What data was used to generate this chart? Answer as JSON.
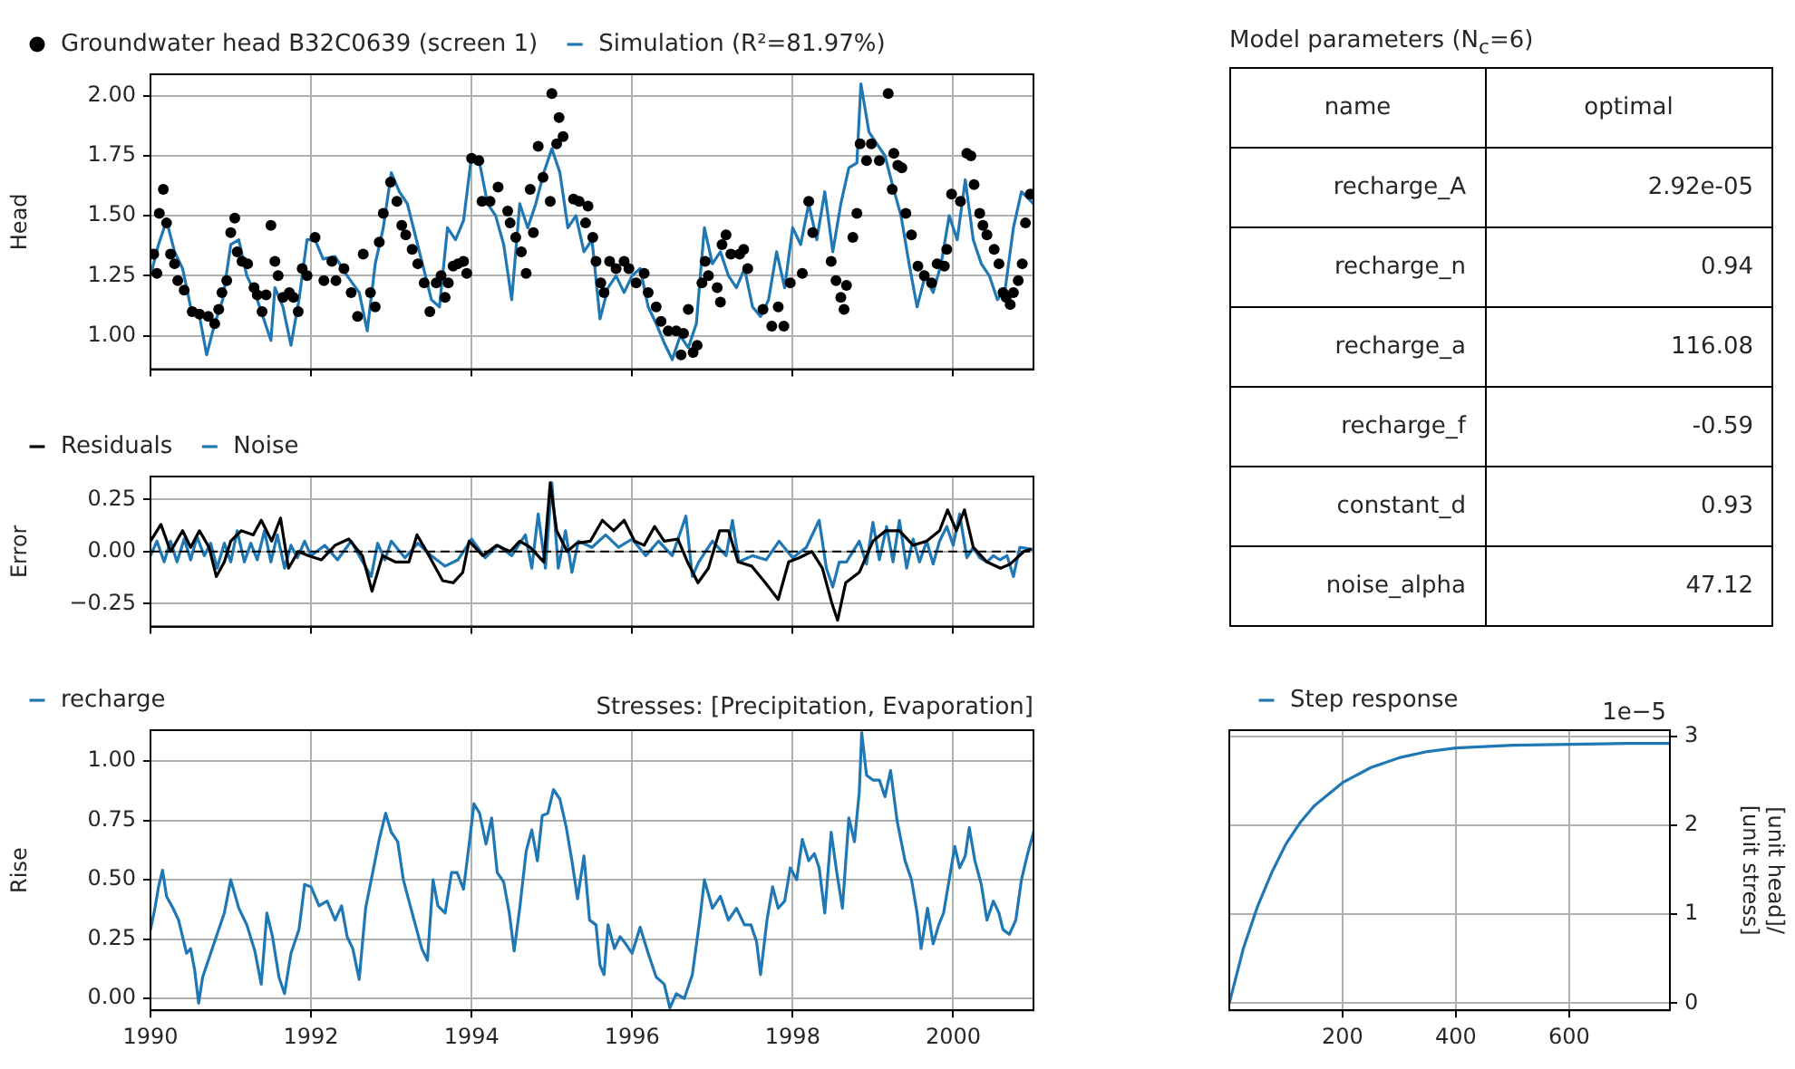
{
  "chart_data": [
    {
      "type": "line",
      "ylabel": "Head",
      "xlim": [
        1990,
        2001
      ],
      "xticks": [
        1990,
        1992,
        1994,
        1996,
        1998,
        2000
      ],
      "ylim": [
        0.86,
        2.09
      ],
      "yticks": [
        {
          "value": 1.0,
          "label": "1.00"
        },
        {
          "value": 1.25,
          "label": "1.25"
        },
        {
          "value": 1.5,
          "label": "1.50"
        },
        {
          "value": 1.75,
          "label": "1.75"
        },
        {
          "value": 2.0,
          "label": "2.00"
        }
      ],
      "grid": true,
      "legend": "top left",
      "tick_labels": "y",
      "series": [
        {
          "name": "Groundwater head B32C0639 (screen 1)",
          "type": "scatter",
          "marker": "circle",
          "color": "#000000",
          "x": [
            1990.04,
            1990.08,
            1990.11,
            1990.16,
            1990.2,
            1990.25,
            1990.3,
            1990.34,
            1990.42,
            1990.52,
            1990.61,
            1990.72,
            1990.8,
            1990.85,
            1990.89,
            1990.95,
            1991.0,
            1991.05,
            1991.08,
            1991.14,
            1991.21,
            1991.29,
            1991.33,
            1991.39,
            1991.44,
            1991.5,
            1991.55,
            1991.59,
            1991.65,
            1991.73,
            1991.78,
            1991.84,
            1991.89,
            1991.95,
            1992.05,
            1992.16,
            1992.26,
            1992.31,
            1992.41,
            1992.5,
            1992.58,
            1992.65,
            1992.74,
            1992.8,
            1992.85,
            1992.9,
            1992.99,
            1993.07,
            1993.13,
            1993.18,
            1993.26,
            1993.33,
            1993.41,
            1993.48,
            1993.56,
            1993.62,
            1993.67,
            1993.71,
            1993.77,
            1993.83,
            1993.9,
            1993.94,
            1994.0,
            1994.09,
            1994.13,
            1994.23,
            1994.33,
            1994.45,
            1994.48,
            1994.55,
            1994.62,
            1994.68,
            1994.73,
            1994.77,
            1994.83,
            1994.89,
            1994.98,
            1995.0,
            1995.06,
            1995.09,
            1995.14,
            1995.27,
            1995.34,
            1995.42,
            1995.45,
            1995.51,
            1995.55,
            1995.61,
            1995.65,
            1995.72,
            1995.8,
            1995.9,
            1995.96,
            1996.05,
            1996.15,
            1996.2,
            1996.3,
            1996.36,
            1996.45,
            1996.55,
            1996.61,
            1996.64,
            1996.7,
            1996.76,
            1996.81,
            1996.87,
            1996.91,
            1996.95,
            1997.06,
            1997.1,
            1997.12,
            1997.17,
            1997.23,
            1997.34,
            1997.39,
            1997.44,
            1997.63,
            1997.74,
            1997.82,
            1997.89,
            1997.97,
            1998.12,
            1998.2,
            1998.25,
            1998.48,
            1998.54,
            1998.6,
            1998.64,
            1998.67,
            1998.75,
            1998.8,
            1998.84,
            1998.92,
            1998.98,
            1999.08,
            1999.19,
            1999.24,
            1999.26,
            1999.31,
            1999.36,
            1999.41,
            1999.48,
            1999.56,
            1999.64,
            1999.73,
            1999.8,
            1999.89,
            1999.92,
            1999.98,
            2000.09,
            2000.17,
            2000.22,
            2000.26,
            2000.33,
            2000.37,
            2000.42,
            2000.51,
            2000.57,
            2000.62,
            2000.66,
            2000.71,
            2000.75,
            2000.81,
            2000.86,
            2000.9,
            2000.96
          ],
          "values": [
            1.34,
            1.26,
            1.51,
            1.61,
            1.47,
            1.34,
            1.3,
            1.23,
            1.19,
            1.1,
            1.09,
            1.08,
            1.05,
            1.11,
            1.18,
            1.23,
            1.43,
            1.49,
            1.35,
            1.31,
            1.3,
            1.2,
            1.17,
            1.1,
            1.17,
            1.46,
            1.31,
            1.25,
            1.16,
            1.18,
            1.16,
            1.1,
            1.28,
            1.25,
            1.41,
            1.23,
            1.31,
            1.23,
            1.28,
            1.18,
            1.08,
            1.34,
            1.18,
            1.12,
            1.39,
            1.51,
            1.64,
            1.56,
            1.46,
            1.42,
            1.36,
            1.3,
            1.22,
            1.1,
            1.22,
            1.25,
            1.16,
            1.22,
            1.29,
            1.3,
            1.31,
            1.26,
            1.74,
            1.73,
            1.56,
            1.56,
            1.62,
            1.52,
            1.47,
            1.41,
            1.35,
            1.26,
            1.61,
            1.43,
            1.79,
            1.66,
            1.56,
            2.01,
            1.8,
            1.91,
            1.83,
            1.57,
            1.56,
            1.47,
            1.54,
            1.41,
            1.31,
            1.22,
            1.18,
            1.31,
            1.28,
            1.31,
            1.28,
            1.22,
            1.26,
            1.18,
            1.12,
            1.06,
            1.02,
            1.02,
            0.92,
            1.01,
            1.11,
            0.93,
            0.96,
            1.22,
            1.31,
            1.25,
            1.2,
            1.14,
            1.38,
            1.42,
            1.34,
            1.34,
            1.36,
            1.28,
            1.11,
            1.04,
            1.12,
            1.04,
            1.22,
            1.26,
            1.56,
            1.43,
            1.31,
            1.23,
            1.16,
            1.11,
            1.21,
            1.41,
            1.51,
            1.8,
            1.73,
            1.8,
            1.73,
            2.01,
            1.61,
            1.76,
            1.71,
            1.7,
            1.51,
            1.42,
            1.29,
            1.25,
            1.22,
            1.3,
            1.29,
            1.36,
            1.59,
            1.56,
            1.76,
            1.75,
            1.63,
            1.51,
            1.46,
            1.42,
            1.36,
            1.3,
            1.18,
            1.16,
            1.13,
            1.18,
            1.23,
            1.3,
            1.47,
            1.59
          ]
        },
        {
          "name": "Simulation (R²=81.97%)",
          "type": "line",
          "color": "#1f77b4",
          "x": [
            1990.0,
            1990.1,
            1990.2,
            1990.3,
            1990.4,
            1990.5,
            1990.6,
            1990.7,
            1990.8,
            1990.9,
            1991.0,
            1991.1,
            1991.2,
            1991.3,
            1991.4,
            1991.5,
            1991.55,
            1991.65,
            1991.75,
            1991.85,
            1991.95,
            1992.05,
            1992.15,
            1992.3,
            1992.45,
            1992.6,
            1992.7,
            1992.8,
            1992.9,
            1993.0,
            1993.1,
            1993.2,
            1993.35,
            1993.5,
            1993.6,
            1993.7,
            1993.8,
            1993.9,
            1994.0,
            1994.1,
            1994.2,
            1994.3,
            1994.4,
            1994.5,
            1994.6,
            1994.7,
            1994.8,
            1994.9,
            1995.0,
            1995.1,
            1995.2,
            1995.3,
            1995.4,
            1995.5,
            1995.6,
            1995.7,
            1995.8,
            1995.9,
            1996.0,
            1996.1,
            1996.2,
            1996.3,
            1996.4,
            1996.5,
            1996.6,
            1996.7,
            1996.8,
            1996.9,
            1997.0,
            1997.1,
            1997.2,
            1997.3,
            1997.4,
            1997.5,
            1997.6,
            1997.7,
            1997.8,
            1997.9,
            1998.0,
            1998.1,
            1998.2,
            1998.3,
            1998.4,
            1998.5,
            1998.6,
            1998.7,
            1998.8,
            1998.85,
            1998.95,
            1999.05,
            1999.15,
            1999.25,
            1999.35,
            1999.45,
            1999.55,
            1999.65,
            1999.75,
            1999.85,
            1999.95,
            2000.05,
            2000.15,
            2000.25,
            2000.35,
            2000.45,
            2000.55,
            2000.65,
            2000.75,
            2000.85,
            2001.0
          ],
          "values": [
            1.25,
            1.38,
            1.48,
            1.35,
            1.28,
            1.12,
            1.1,
            0.92,
            1.05,
            1.15,
            1.38,
            1.4,
            1.25,
            1.18,
            1.08,
            0.98,
            1.2,
            1.12,
            0.96,
            1.15,
            1.4,
            1.4,
            1.32,
            1.33,
            1.25,
            1.18,
            1.02,
            1.3,
            1.45,
            1.68,
            1.6,
            1.55,
            1.35,
            1.15,
            1.12,
            1.45,
            1.4,
            1.48,
            1.75,
            1.72,
            1.55,
            1.5,
            1.38,
            1.15,
            1.55,
            1.45,
            1.55,
            1.68,
            1.78,
            1.68,
            1.45,
            1.5,
            1.35,
            1.4,
            1.07,
            1.2,
            1.25,
            1.18,
            1.25,
            1.28,
            1.12,
            1.05,
            0.97,
            0.9,
            1.0,
            0.95,
            1.05,
            1.45,
            1.3,
            1.35,
            1.25,
            1.2,
            1.28,
            1.12,
            1.08,
            1.15,
            1.35,
            1.2,
            1.45,
            1.38,
            1.55,
            1.4,
            1.6,
            1.35,
            1.55,
            1.7,
            1.72,
            2.05,
            1.85,
            1.8,
            1.75,
            1.62,
            1.5,
            1.3,
            1.12,
            1.25,
            1.18,
            1.3,
            1.5,
            1.4,
            1.65,
            1.4,
            1.3,
            1.25,
            1.15,
            1.2,
            1.45,
            1.6,
            1.55
          ]
        }
      ]
    },
    {
      "type": "line",
      "ylabel": "Error",
      "xlim": [
        1990,
        2001
      ],
      "xticks": [
        1990,
        1992,
        1994,
        1996,
        1998,
        2000
      ],
      "ylim": [
        -0.36,
        0.36
      ],
      "yticks": [
        {
          "value": -0.25,
          "label": "−0.25"
        },
        {
          "value": 0,
          "label": "0.00"
        },
        {
          "value": 0.25,
          "label": "0.25"
        }
      ],
      "grid": true,
      "legend": "top left",
      "tick_labels": "y",
      "ref_lines": [
        {
          "axis": "y",
          "value": 0,
          "color": "#000000",
          "line_style": "dashed"
        }
      ],
      "series": [
        {
          "name": "Residuals",
          "color": "#000000",
          "x": [
            1990.0,
            1990.13,
            1990.25,
            1990.4,
            1990.5,
            1990.61,
            1990.73,
            1990.82,
            1990.92,
            1991.0,
            1991.13,
            1991.28,
            1991.38,
            1991.51,
            1991.62,
            1991.72,
            1991.84,
            1991.97,
            1992.13,
            1992.3,
            1992.47,
            1992.64,
            1992.76,
            1992.89,
            1993.05,
            1993.22,
            1993.32,
            1993.47,
            1993.64,
            1993.77,
            1993.89,
            1993.97,
            1994.14,
            1994.31,
            1994.48,
            1994.6,
            1994.73,
            1994.9,
            1994.98,
            1995.06,
            1995.19,
            1995.31,
            1995.48,
            1995.63,
            1995.77,
            1995.9,
            1996.03,
            1996.15,
            1996.28,
            1996.4,
            1996.57,
            1996.69,
            1996.82,
            1996.95,
            1997.09,
            1997.2,
            1997.32,
            1997.49,
            1997.66,
            1997.82,
            1997.95,
            1998.08,
            1998.24,
            1998.37,
            1998.49,
            1998.56,
            1998.66,
            1998.83,
            1999.0,
            1999.16,
            1999.33,
            1999.5,
            1999.67,
            1999.83,
            1999.93,
            2000.04,
            2000.14,
            2000.25,
            2000.42,
            2000.59,
            2000.71,
            2000.88,
            2000.96
          ],
          "values": [
            0.05,
            0.13,
            0.0,
            0.1,
            0.02,
            0.1,
            0.02,
            -0.12,
            -0.05,
            0.05,
            0.1,
            0.08,
            0.15,
            0.05,
            0.16,
            -0.08,
            0.0,
            -0.02,
            -0.04,
            0.03,
            0.06,
            -0.02,
            -0.19,
            -0.02,
            -0.05,
            -0.05,
            0.08,
            -0.02,
            -0.14,
            -0.15,
            -0.1,
            0.05,
            -0.02,
            0.03,
            0.0,
            0.05,
            0.02,
            -0.05,
            0.33,
            0.1,
            0.0,
            0.04,
            0.05,
            0.15,
            0.1,
            0.15,
            0.05,
            0.03,
            0.12,
            0.05,
            0.06,
            -0.05,
            -0.15,
            -0.08,
            0.1,
            0.1,
            -0.05,
            -0.07,
            -0.15,
            -0.23,
            -0.05,
            -0.03,
            0.0,
            -0.08,
            -0.25,
            -0.33,
            -0.15,
            -0.1,
            0.05,
            0.1,
            0.1,
            0.03,
            0.05,
            0.1,
            0.2,
            0.1,
            0.2,
            0.02,
            -0.05,
            -0.08,
            -0.06,
            0.0,
            0.01
          ]
        },
        {
          "name": "Noise",
          "color": "#1f77b4",
          "x": [
            1990.0,
            1990.08,
            1990.17,
            1990.25,
            1990.33,
            1990.42,
            1990.5,
            1990.58,
            1990.67,
            1990.75,
            1990.83,
            1990.92,
            1991.0,
            1991.08,
            1991.17,
            1991.25,
            1991.33,
            1991.42,
            1991.5,
            1991.58,
            1991.67,
            1991.75,
            1991.83,
            1991.92,
            1992.0,
            1992.17,
            1992.33,
            1992.5,
            1992.6,
            1992.75,
            1992.83,
            1992.92,
            1993.0,
            1993.17,
            1993.33,
            1993.5,
            1993.67,
            1993.83,
            1994.0,
            1994.17,
            1994.33,
            1994.5,
            1994.67,
            1994.75,
            1994.83,
            1994.92,
            1995.0,
            1995.08,
            1995.17,
            1995.25,
            1995.33,
            1995.5,
            1995.67,
            1995.83,
            1996.0,
            1996.17,
            1996.33,
            1996.5,
            1996.67,
            1996.75,
            1996.83,
            1997.0,
            1997.17,
            1997.25,
            1997.33,
            1997.5,
            1997.67,
            1997.83,
            1998.0,
            1998.17,
            1998.33,
            1998.42,
            1998.5,
            1998.58,
            1998.67,
            1998.83,
            1998.92,
            1999.0,
            1999.08,
            1999.17,
            1999.25,
            1999.33,
            1999.42,
            1999.5,
            1999.58,
            1999.67,
            1999.75,
            1999.83,
            1999.92,
            2000.0,
            2000.08,
            2000.17,
            2000.25,
            2000.33,
            2000.42,
            2000.5,
            2000.58,
            2000.67,
            2000.75,
            2000.83,
            2001.0
          ],
          "values": [
            -0.02,
            0.05,
            -0.05,
            0.05,
            -0.05,
            0.06,
            -0.04,
            0.07,
            -0.02,
            0.04,
            -0.08,
            0.04,
            -0.05,
            0.1,
            -0.05,
            0.04,
            -0.04,
            0.1,
            -0.05,
            0.08,
            -0.08,
            0.03,
            -0.03,
            0.05,
            -0.02,
            0.03,
            -0.04,
            0.05,
            -0.02,
            -0.12,
            0.04,
            -0.04,
            0.05,
            -0.03,
            0.04,
            -0.02,
            -0.07,
            -0.04,
            0.06,
            -0.03,
            0.03,
            -0.02,
            0.08,
            -0.08,
            0.18,
            -0.08,
            0.33,
            -0.08,
            0.1,
            -0.1,
            0.05,
            0.02,
            0.08,
            0.02,
            0.06,
            -0.02,
            0.05,
            -0.02,
            0.17,
            -0.12,
            -0.05,
            0.05,
            -0.02,
            0.15,
            -0.05,
            -0.02,
            -0.04,
            0.05,
            -0.03,
            0.02,
            0.15,
            -0.08,
            -0.17,
            -0.05,
            -0.05,
            0.05,
            -0.06,
            0.14,
            -0.04,
            0.12,
            -0.05,
            0.15,
            -0.08,
            0.06,
            -0.05,
            0.05,
            -0.06,
            0.05,
            0.12,
            0.03,
            0.18,
            -0.03,
            0.02,
            -0.03,
            -0.05,
            -0.02,
            -0.04,
            -0.02,
            -0.12,
            0.02,
            0.01
          ]
        }
      ]
    },
    {
      "type": "line",
      "title": "Stresses: [Precipitation, Evaporation]",
      "ylabel": "Rise",
      "xlim": [
        1990,
        2001
      ],
      "xticks": [
        1990,
        1992,
        1994,
        1996,
        1998,
        2000
      ],
      "ylim": [
        -0.05,
        1.13
      ],
      "yticks": [
        {
          "value": 0,
          "label": "0.00"
        },
        {
          "value": 0.25,
          "label": "0.25"
        },
        {
          "value": 0.5,
          "label": "0.50"
        },
        {
          "value": 0.75,
          "label": "0.75"
        },
        {
          "value": 1.0,
          "label": "1.00"
        }
      ],
      "grid": true,
      "legend": "top left",
      "series": [
        {
          "name": "recharge",
          "color": "#1f77b4",
          "x": [
            1990.0,
            1990.05,
            1990.1,
            1990.15,
            1990.2,
            1990.28,
            1990.35,
            1990.45,
            1990.5,
            1990.55,
            1990.6,
            1990.65,
            1990.75,
            1990.85,
            1990.92,
            1991.0,
            1991.1,
            1991.2,
            1991.3,
            1991.38,
            1991.45,
            1991.52,
            1991.6,
            1991.67,
            1991.75,
            1991.85,
            1991.92,
            1992.0,
            1992.1,
            1992.2,
            1992.3,
            1992.38,
            1992.45,
            1992.52,
            1992.6,
            1992.68,
            1992.75,
            1992.85,
            1992.93,
            1993.0,
            1993.08,
            1993.15,
            1993.22,
            1993.3,
            1993.38,
            1993.45,
            1993.52,
            1993.58,
            1993.67,
            1993.75,
            1993.82,
            1993.9,
            1993.97,
            1994.03,
            1994.1,
            1994.18,
            1994.25,
            1994.32,
            1994.4,
            1994.47,
            1994.53,
            1994.6,
            1994.68,
            1994.75,
            1994.82,
            1994.88,
            1994.95,
            1995.02,
            1995.1,
            1995.18,
            1995.25,
            1995.32,
            1995.4,
            1995.47,
            1995.55,
            1995.6,
            1995.65,
            1995.7,
            1995.78,
            1995.85,
            1995.92,
            1996.0,
            1996.1,
            1996.2,
            1996.3,
            1996.4,
            1996.47,
            1996.55,
            1996.65,
            1996.75,
            1996.85,
            1996.9,
            1997.0,
            1997.1,
            1997.2,
            1997.3,
            1997.4,
            1997.48,
            1997.55,
            1997.6,
            1997.68,
            1997.75,
            1997.82,
            1997.9,
            1997.97,
            1998.05,
            1998.12,
            1998.2,
            1998.27,
            1998.33,
            1998.4,
            1998.48,
            1998.55,
            1998.62,
            1998.7,
            1998.77,
            1998.83,
            1998.86,
            1998.92,
            1999.0,
            1999.08,
            1999.15,
            1999.22,
            1999.3,
            1999.4,
            1999.48,
            1999.55,
            1999.6,
            1999.68,
            1999.75,
            1999.82,
            1999.88,
            1999.95,
            2000.02,
            2000.08,
            2000.15,
            2000.2,
            2000.27,
            2000.35,
            2000.42,
            2000.5,
            2000.57,
            2000.62,
            2000.7,
            2000.78,
            2000.85,
            2000.92,
            2001.0
          ],
          "values": [
            0.29,
            0.37,
            0.47,
            0.54,
            0.43,
            0.38,
            0.33,
            0.19,
            0.21,
            0.12,
            -0.02,
            0.09,
            0.19,
            0.29,
            0.36,
            0.5,
            0.38,
            0.31,
            0.2,
            0.06,
            0.36,
            0.26,
            0.09,
            0.02,
            0.19,
            0.29,
            0.48,
            0.47,
            0.39,
            0.41,
            0.33,
            0.39,
            0.26,
            0.21,
            0.08,
            0.38,
            0.5,
            0.67,
            0.78,
            0.7,
            0.66,
            0.5,
            0.41,
            0.31,
            0.21,
            0.16,
            0.5,
            0.39,
            0.36,
            0.53,
            0.53,
            0.46,
            0.65,
            0.82,
            0.78,
            0.65,
            0.76,
            0.53,
            0.49,
            0.36,
            0.2,
            0.38,
            0.62,
            0.71,
            0.58,
            0.77,
            0.78,
            0.88,
            0.84,
            0.72,
            0.58,
            0.42,
            0.6,
            0.33,
            0.31,
            0.14,
            0.1,
            0.31,
            0.21,
            0.26,
            0.23,
            0.19,
            0.3,
            0.19,
            0.09,
            0.06,
            -0.04,
            0.02,
            0.0,
            0.1,
            0.35,
            0.5,
            0.38,
            0.43,
            0.33,
            0.38,
            0.31,
            0.31,
            0.24,
            0.1,
            0.33,
            0.47,
            0.38,
            0.41,
            0.55,
            0.5,
            0.67,
            0.58,
            0.61,
            0.55,
            0.36,
            0.7,
            0.53,
            0.38,
            0.76,
            0.66,
            0.87,
            1.12,
            0.94,
            0.92,
            0.92,
            0.85,
            0.96,
            0.75,
            0.58,
            0.5,
            0.36,
            0.21,
            0.38,
            0.23,
            0.31,
            0.36,
            0.5,
            0.64,
            0.55,
            0.6,
            0.72,
            0.58,
            0.48,
            0.33,
            0.41,
            0.36,
            0.29,
            0.27,
            0.33,
            0.5,
            0.6,
            0.7
          ]
        }
      ]
    },
    {
      "type": "other",
      "title": "Model parameters (N$_{c}$=6)",
      "annotations": [
        "name",
        "optimal",
        "recharge_A",
        "2.92e-05",
        "recharge_n",
        "0.94",
        "recharge_a",
        "116.08",
        "recharge_f",
        "-0.59",
        "constant_d",
        "0.93",
        "noise_alpha",
        "47.12"
      ]
    },
    {
      "type": "line",
      "xlim": [
        0,
        778
      ],
      "xticks": [
        200,
        400,
        600
      ],
      "y2lim": [
        -0.08,
        3.07
      ],
      "y2ticks": [
        0,
        1,
        2,
        3
      ],
      "y2label": "[unit head]/\n[unit stress]",
      "annotations": [
        "1e−5"
      ],
      "grid": true,
      "legend": "top left",
      "series": [
        {
          "name": "Step response",
          "color": "#1f77b4",
          "axis": "y2",
          "x": [
            0,
            25,
            50,
            75,
            100,
            125,
            150,
            200,
            250,
            300,
            350,
            400,
            500,
            600,
            700,
            778
          ],
          "values": [
            0,
            0.62,
            1.09,
            1.47,
            1.79,
            2.03,
            2.22,
            2.48,
            2.65,
            2.76,
            2.83,
            2.87,
            2.9,
            2.91,
            2.92,
            2.92
          ]
        }
      ]
    }
  ]
}
